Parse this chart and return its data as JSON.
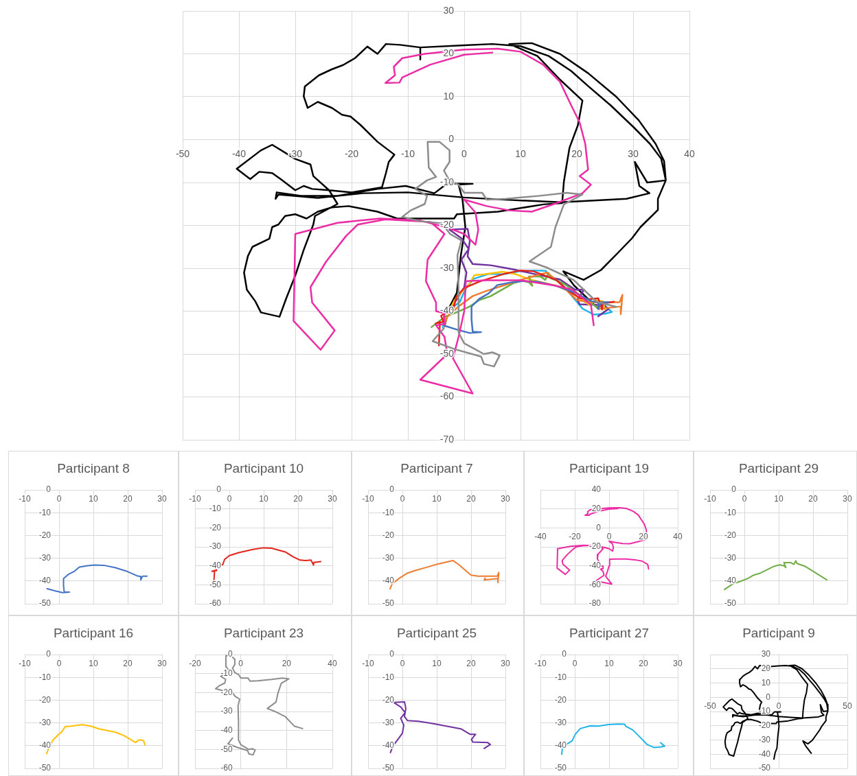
{
  "chart_data": [
    {
      "type": "line",
      "xlim": [
        -50,
        40
      ],
      "ylim": [
        -70,
        30
      ],
      "xticks": [
        -50,
        -40,
        -30,
        -20,
        -10,
        0,
        10,
        20,
        30,
        40
      ],
      "yticks": [
        -70,
        -60,
        -50,
        -40,
        -30,
        -20,
        -10,
        0,
        10,
        20,
        30
      ],
      "grid": true,
      "series": [
        {
          "color": "#8c8c8c",
          "x": [
            -3.6,
            -5.6,
            -1.6,
            3,
            3.5,
            5.3,
            6.3,
            5,
            3.5,
            0,
            -1,
            -1,
            -1.2,
            -0.5,
            -2.5,
            -4,
            -8,
            -11,
            -9.5,
            -7,
            -6.6,
            -8.7,
            -6.6,
            -5,
            -6.3,
            -6.5,
            -4.4,
            -2.6,
            -2.6,
            -3.6,
            -2.7,
            -1,
            0,
            3.2,
            4,
            7.4,
            13.4,
            18.2,
            21,
            17.7,
            16.2,
            15.4,
            11.6,
            14.6,
            19.4,
            23.5,
            27
          ],
          "values": [
            -44,
            -47,
            -48.9,
            -50.6,
            -52.3,
            -52.9,
            -50.3,
            -49.6,
            -50,
            -47.5,
            -45,
            -35,
            -27,
            -23.5,
            -22,
            -19.5,
            -19,
            -18,
            -16.5,
            -15,
            -13.1,
            -11.5,
            -9.5,
            -8.7,
            -6.5,
            -0.5,
            -0.5,
            -2.5,
            -5.2,
            -7.2,
            -9.4,
            -10.5,
            -12.4,
            -12.4,
            -14,
            -13.8,
            -13.1,
            -12.4,
            -12.8,
            -15.1,
            -20.4,
            -25,
            -28.4,
            -29.8,
            -32.7,
            -37.8,
            -39
          ]
        },
        {
          "color": "#ec2ca5",
          "x": [
            5,
            0,
            -6,
            -11,
            -11.5,
            -14,
            -12.3,
            -12.5,
            -11,
            -7,
            0,
            6,
            10,
            14,
            17,
            19,
            20.5,
            21.5,
            22,
            20.5,
            22.5,
            21,
            16,
            12,
            8,
            4,
            0,
            2,
            2.5,
            2,
            0,
            -3,
            -8,
            -15,
            -22.5,
            -30,
            -30.3,
            -25.5,
            -23,
            -27,
            -27.3,
            -24.5,
            -21,
            -18.9,
            -14,
            -6,
            -3.5,
            -6.5,
            -6.8,
            -5,
            -5,
            -3.5,
            -3.5,
            -5,
            -3.5,
            -3,
            -7.8,
            1.5,
            -2,
            -1,
            0,
            0.3,
            4,
            10,
            16,
            19.2,
            22.5,
            23
          ],
          "values": [
            20.3,
            19.8,
            17.5,
            14.5,
            13.3,
            13.2,
            15,
            17,
            19,
            20,
            21,
            21.2,
            20.5,
            17.5,
            13.5,
            8,
            4,
            -1,
            -7,
            -8.5,
            -10.5,
            -12.5,
            -15,
            -16.8,
            -16.5,
            -15.5,
            -14,
            -17,
            -21,
            -24.5,
            -22,
            -20.5,
            -18.8,
            -18.4,
            -19.4,
            -22,
            -42.3,
            -49,
            -44.5,
            -38,
            -34.4,
            -28.4,
            -22.5,
            -19.8,
            -18.6,
            -19.2,
            -22,
            -28,
            -33,
            -38,
            -40,
            -40.5,
            -43,
            -43.3,
            -46,
            -50,
            -56,
            -59.2,
            -51,
            -46,
            -40,
            -33,
            -32.8,
            -32.8,
            -34,
            -35,
            -38.5,
            -43.3
          ]
        },
        {
          "color": "#4472c4",
          "x": [
            -3.5,
            -1.3,
            1,
            3,
            1.5,
            1.3,
            1.3,
            2.7,
            4.3,
            5.9,
            8.3,
            10.3,
            13,
            16.3,
            19.5,
            22.7,
            23.8,
            23.8,
            24.3,
            25.6
          ],
          "values": [
            -43.4,
            -44.3,
            -45.1,
            -44.9,
            -44.8,
            -41.9,
            -38.9,
            -37.1,
            -35.9,
            -33.9,
            -33.3,
            -33,
            -33.1,
            -34.1,
            -35.6,
            -37.7,
            -38,
            -39.5,
            -37.9,
            -37.9
          ]
        },
        {
          "color": "#e3231b",
          "x": [
            -4.5,
            -4.3,
            -5.1,
            -3.7,
            -4.1,
            -2.9,
            -1.9,
            -1.4,
            0,
            2.7,
            7.1,
            10,
            12.3,
            16.3,
            18.6,
            20.6,
            22.2,
            23.8,
            24.5,
            24.6,
            26.6
          ],
          "values": [
            -48,
            -42.5,
            -42.9,
            -42.5,
            -41.1,
            -39.9,
            -39.3,
            -36.7,
            -34.6,
            -33.1,
            -31.3,
            -30.5,
            -30.7,
            -32.7,
            -35.3,
            -37,
            -37.2,
            -37,
            -39.6,
            -38.2,
            -37.8
          ]
        },
        {
          "color": "#ed7d31",
          "x": [
            -3.6,
            -3,
            -1,
            1.5,
            3.9,
            7,
            10,
            14.7,
            16.5,
            18.1,
            20,
            22.1,
            27.6,
            28.1,
            27.8,
            27.8,
            23.8,
            24.1
          ],
          "values": [
            -43.4,
            -41.3,
            -38.9,
            -36.5,
            -35.3,
            -34,
            -32.7,
            -31,
            -32.9,
            -35,
            -37.4,
            -37.9,
            -37.9,
            -36.2,
            -40.7,
            -38.9,
            -39.5,
            -38.7
          ]
        },
        {
          "color": "#70ad47",
          "x": [
            -5.8,
            -3.4,
            -1.4,
            1,
            2.7,
            4.7,
            7.1,
            8.7,
            10.3,
            11.5,
            12.1,
            11.5,
            13.5,
            14.4,
            15,
            15.3,
            17.6,
            20.8,
            24
          ],
          "values": [
            -43.7,
            -41.3,
            -40.3,
            -38.9,
            -37.4,
            -36.5,
            -34.7,
            -33.5,
            -32.9,
            -33.3,
            -34.1,
            -31.9,
            -31.9,
            -32.7,
            -31.1,
            -32.3,
            -33.5,
            -36.5,
            -39.5
          ]
        },
        {
          "color": "#ffc000",
          "x": [
            -3.6,
            -2.9,
            -1.7,
            -0.1,
            0.7,
            1.8,
            3.6,
            6.8,
            9.2,
            11.6,
            16.5,
            18.9,
            22.3,
            23.3,
            24.6,
            25
          ],
          "values": [
            -43.5,
            -40.5,
            -37.4,
            -35,
            -34.1,
            -31.6,
            -31.4,
            -30.8,
            -31.4,
            -32.6,
            -34.1,
            -35.6,
            -38.6,
            -37.4,
            -37.7,
            -39.6
          ]
        },
        {
          "color": "#7030a0",
          "x": [
            -3.5,
            -2.7,
            -1.2,
            0,
            0.4,
            -0.5,
            0.8,
            -0.5,
            -2.6,
            0.6,
            1,
            0.6,
            1.5,
            4.7,
            8.5,
            13,
            17,
            19.7,
            21.3,
            20.1,
            20.5,
            24.8,
            25.6,
            23.8
          ],
          "values": [
            -43,
            -40,
            -37,
            -34.5,
            -31,
            -28,
            -25.5,
            -23,
            -21,
            -20.8,
            -23.6,
            -27.2,
            -29,
            -29.3,
            -30.2,
            -31.5,
            -32.6,
            -35,
            -35,
            -37.3,
            -38.4,
            -38.6,
            -39.5,
            -41.2
          ]
        },
        {
          "color": "#1fb4e8",
          "x": [
            -3.8,
            -3.6,
            -2.4,
            -0.8,
            0.2,
            1.6,
            4.4,
            6.9,
            9.9,
            12.5,
            14.5,
            14.9,
            16.9,
            18.9,
            21,
            23,
            25,
            26.2,
            25
          ],
          "values": [
            -43.8,
            -40.8,
            -39.4,
            -37.9,
            -34.9,
            -32.5,
            -31.3,
            -31.4,
            -30.7,
            -30.5,
            -30.6,
            -31.5,
            -33.1,
            -36.1,
            -39.4,
            -40.8,
            -40.6,
            -40.2,
            -38.7
          ]
        },
        {
          "color": "#000000",
          "x": [
            -3.5,
            -2.6,
            -1.3,
            -0.6,
            0.2,
            -0.3,
            -1,
            1.5,
            -3,
            -5.3,
            -10.4,
            -15.4,
            -22.5,
            -29,
            -33.3,
            -33.5,
            -33,
            -26,
            -18,
            -10,
            0,
            8.6,
            17.2,
            28.8,
            32.9,
            31.1,
            30.3,
            32.5,
            35.8,
            35,
            33,
            30,
            26,
            22,
            19,
            15,
            10,
            5,
            0,
            -7.8,
            -7.8,
            -7.8,
            -11.4,
            -13.9,
            -15.4,
            -17.2,
            -19.4,
            -21.5,
            -23.5,
            -25.8,
            -28.3,
            -28.5,
            -27.8,
            -26,
            -23.5,
            -21.7,
            -20.2,
            -18.4,
            -15.4,
            -12.4,
            -13.4,
            -13.9,
            -14.6,
            -20,
            -24,
            -27,
            -28.5,
            -30,
            -32.6,
            -34.1,
            -36.4,
            -38,
            -40.4,
            -36.1,
            -34.1,
            -30,
            -27.3,
            -26.8,
            -24,
            -22.5,
            -26.5,
            -26.8,
            -28.5,
            -30,
            -31.6,
            -32.8,
            -36.1,
            -37.1,
            -38.6,
            -39.1,
            -38.4,
            -37.6,
            -34.6,
            -34.1,
            -33,
            -31.8,
            -30,
            -28,
            -26,
            -23.5,
            -20.5,
            -15.4,
            -11.9,
            -1.8,
            -1.3,
            6,
            14.1,
            17.4,
            17.7,
            18.2,
            18.7,
            20.2,
            21,
            17,
            13,
            8,
            12,
            17,
            22,
            27,
            31,
            34,
            35.5,
            35.8,
            34.4,
            34.4,
            31.3,
            29.8,
            27.3,
            24.3,
            21.2,
            17.6,
            19.5,
            23.7
          ],
          "values": [
            -43.5,
            -39,
            -35.7,
            -27,
            -20.4,
            -14,
            -10.5,
            -10.3,
            -10.2,
            -12.5,
            -10.8,
            -11.5,
            -13.1,
            -13.1,
            -12.3,
            -13.8,
            -12.8,
            -13.6,
            -12.5,
            -12.3,
            -13.5,
            -14.1,
            -14.6,
            -13.8,
            -12.5,
            -10.8,
            -5.2,
            -10,
            -9.5,
            -4.5,
            -1,
            3,
            8,
            12.5,
            16,
            19.5,
            21.8,
            22.3,
            22,
            21.5,
            18.7,
            21.5,
            22.1,
            22.3,
            20,
            21.7,
            19,
            17.4,
            16.4,
            15,
            12.4,
            10.1,
            7.4,
            8.8,
            7.4,
            5.8,
            5.4,
            3.4,
            -0.5,
            -3.5,
            -5.2,
            -7.8,
            -11.1,
            -12.3,
            -11.8,
            -11.5,
            -10.8,
            -11.8,
            -9.2,
            -7.8,
            -7.5,
            -9.2,
            -6.8,
            -2.5,
            -1.2,
            -4.5,
            -5.8,
            -8.5,
            -11.8,
            -15,
            -17.8,
            -19.8,
            -25.7,
            -31.7,
            -37,
            -41.3,
            -40.3,
            -37.7,
            -35,
            -31,
            -27.1,
            -25,
            -23.1,
            -20.4,
            -19.8,
            -17.8,
            -17.4,
            -18.4,
            -16.8,
            -15.8,
            -15.5,
            -16.8,
            -18.4,
            -18.4,
            -17.4,
            -16.8,
            -15.1,
            -14.8,
            -9.8,
            -5.8,
            -1.9,
            3.4,
            9.1,
            14,
            19.5,
            22.3,
            22.5,
            20,
            15.5,
            10,
            4.5,
            -1,
            -5,
            -9.5,
            -13.8,
            -16.4,
            -20.4,
            -23,
            -26.4,
            -30.4,
            -32.7,
            -30.7,
            -34,
            -39.3
          ]
        }
      ]
    },
    {
      "type": "line",
      "title": "Participant 8",
      "xlim": [
        -10,
        30
      ],
      "ylim": [
        -50,
        0
      ],
      "xticks": [
        -10,
        0,
        10,
        20,
        30
      ],
      "yticks": [
        -50,
        -40,
        -30,
        -20,
        -10,
        0
      ],
      "grid": true,
      "series": [
        {
          "color": "#4472c4",
          "x": [
            -3.5,
            -1.3,
            1,
            3,
            1.5,
            1.3,
            1.3,
            2.7,
            4.3,
            5.9,
            8.3,
            10.3,
            13,
            16.3,
            19.5,
            22.7,
            23.8,
            23.8,
            24.3,
            25.6
          ],
          "values": [
            -43.4,
            -44.3,
            -45.1,
            -44.9,
            -44.8,
            -41.9,
            -38.9,
            -37.1,
            -35.9,
            -33.9,
            -33.3,
            -33,
            -33.1,
            -34.1,
            -35.6,
            -37.7,
            -38,
            -39.5,
            -37.9,
            -37.9
          ]
        }
      ]
    },
    {
      "type": "line",
      "title": "Participant 10",
      "xlim": [
        -10,
        30
      ],
      "ylim": [
        -60,
        0
      ],
      "xticks": [
        -10,
        0,
        10,
        20,
        30
      ],
      "yticks": [
        -60,
        -50,
        -40,
        -30,
        -20,
        -10,
        0
      ],
      "grid": true,
      "series": [
        {
          "color": "#e3231b",
          "x": [
            -4.5,
            -4.3,
            -5.1,
            -3.7,
            -4.1,
            -2.9,
            -1.9,
            -1.4,
            0,
            2.7,
            7.1,
            10,
            12.3,
            16.3,
            18.6,
            20.6,
            22.2,
            23.8,
            24.5,
            24.6,
            26.6
          ],
          "values": [
            -48,
            -42.5,
            -42.9,
            -42.5,
            -41.1,
            -39.9,
            -39.3,
            -36.7,
            -34.6,
            -33.1,
            -31.3,
            -30.5,
            -30.7,
            -32.7,
            -35.3,
            -37,
            -37.2,
            -37,
            -39.6,
            -38.2,
            -37.8
          ]
        }
      ]
    },
    {
      "type": "line",
      "title": "Participant 7",
      "xlim": [
        -10,
        30
      ],
      "ylim": [
        -50,
        0
      ],
      "xticks": [
        -10,
        0,
        10,
        20,
        30
      ],
      "yticks": [
        -50,
        -40,
        -30,
        -20,
        -10,
        0
      ],
      "grid": true,
      "series": [
        {
          "color": "#ed7d31",
          "x": [
            -3.6,
            -3,
            -1,
            1.5,
            3.9,
            7,
            10,
            14.7,
            16.5,
            18.1,
            20,
            22.1,
            27.6,
            28.1,
            27.8,
            27.8,
            23.8,
            24.1
          ],
          "values": [
            -43.4,
            -41.3,
            -38.9,
            -36.5,
            -35.3,
            -34,
            -32.7,
            -31,
            -32.9,
            -35,
            -37.4,
            -37.9,
            -37.9,
            -36.2,
            -40.7,
            -38.9,
            -39.5,
            -38.7
          ]
        }
      ]
    },
    {
      "type": "line",
      "title": "Participant 19",
      "xlim": [
        -40,
        40
      ],
      "ylim": [
        -80,
        40
      ],
      "xticks": [
        -40,
        -20,
        0,
        20,
        40
      ],
      "yticks": [
        -80,
        -60,
        -40,
        -20,
        0,
        20,
        40
      ],
      "grid": true,
      "series": [
        {
          "color": "#ec2ca5",
          "x": [
            5,
            0,
            -6,
            -11,
            -11.5,
            -14,
            -12.3,
            -12.5,
            -11,
            -7,
            0,
            6,
            10,
            14,
            17,
            19,
            20.5,
            21.5,
            22,
            20.5,
            22.5,
            21,
            16,
            12,
            8,
            4,
            0,
            2,
            2.5,
            2,
            0,
            -3,
            -8,
            -15,
            -22.5,
            -30,
            -30.3,
            -25.5,
            -23,
            -27,
            -27.3,
            -24.5,
            -21,
            -18.9,
            -14,
            -6,
            -3.5,
            -6.5,
            -6.8,
            -5,
            -5,
            -3.5,
            -3.5,
            -5,
            -3.5,
            -3,
            -7.8,
            1.5,
            -2,
            -1,
            0,
            0.3,
            4,
            10,
            16,
            19.2,
            22.5,
            23
          ],
          "values": [
            20.3,
            19.8,
            17.5,
            14.5,
            13.3,
            13.2,
            15,
            17,
            19,
            20,
            21,
            21.2,
            20.5,
            17.5,
            13.5,
            8,
            4,
            -1,
            -7,
            -8.5,
            -10.5,
            -12.5,
            -15,
            -16.8,
            -16.5,
            -15.5,
            -14,
            -17,
            -21,
            -24.5,
            -22,
            -20.5,
            -18.8,
            -18.4,
            -19.4,
            -22,
            -42.3,
            -49,
            -44.5,
            -38,
            -34.4,
            -28.4,
            -22.5,
            -19.8,
            -18.6,
            -19.2,
            -22,
            -28,
            -33,
            -38,
            -40,
            -40.5,
            -43,
            -43.3,
            -46,
            -50,
            -56,
            -59.2,
            -51,
            -46,
            -40,
            -33,
            -32.8,
            -32.8,
            -34,
            -35,
            -38.5,
            -43.3
          ]
        }
      ]
    },
    {
      "type": "line",
      "title": "Participant 29",
      "xlim": [
        -10,
        30
      ],
      "ylim": [
        -50,
        0
      ],
      "xticks": [
        -10,
        0,
        10,
        20,
        30
      ],
      "yticks": [
        -50,
        -40,
        -30,
        -20,
        -10,
        0
      ],
      "grid": true,
      "series": [
        {
          "color": "#70ad47",
          "x": [
            -5.8,
            -3.4,
            -1.4,
            1,
            2.7,
            4.7,
            7.1,
            8.7,
            10.3,
            11.5,
            12.1,
            11.5,
            13.5,
            14.4,
            15,
            15.3,
            17.6,
            20.8,
            24
          ],
          "values": [
            -43.7,
            -41.3,
            -40.3,
            -38.9,
            -37.4,
            -36.5,
            -34.7,
            -33.5,
            -32.9,
            -33.3,
            -34.1,
            -31.9,
            -31.9,
            -32.7,
            -31.1,
            -32.3,
            -33.5,
            -36.5,
            -39.5
          ]
        }
      ]
    },
    {
      "type": "line",
      "title": "Participant 16",
      "xlim": [
        -10,
        30
      ],
      "ylim": [
        -50,
        0
      ],
      "xticks": [
        -10,
        0,
        10,
        20,
        30
      ],
      "yticks": [
        -50,
        -40,
        -30,
        -20,
        -10,
        0
      ],
      "grid": true,
      "series": [
        {
          "color": "#ffc000",
          "x": [
            -3.6,
            -2.9,
            -1.7,
            -0.1,
            0.7,
            1.8,
            3.6,
            6.8,
            9.2,
            11.6,
            16.5,
            18.9,
            22.3,
            23.3,
            24.6,
            25
          ],
          "values": [
            -43.5,
            -40.5,
            -37.4,
            -35,
            -34.1,
            -31.6,
            -31.4,
            -30.8,
            -31.4,
            -32.6,
            -34.1,
            -35.6,
            -38.6,
            -37.4,
            -37.7,
            -39.6
          ]
        }
      ]
    },
    {
      "type": "line",
      "title": "Participant 23",
      "xlim": [
        -20,
        40
      ],
      "ylim": [
        -60,
        0
      ],
      "xticks": [
        -20,
        0,
        20,
        40
      ],
      "yticks": [
        -60,
        -50,
        -40,
        -30,
        -20,
        -10,
        0
      ],
      "grid": true,
      "series": [
        {
          "color": "#8c8c8c",
          "x": [
            -3.6,
            -5.6,
            -1.6,
            3,
            3.5,
            5.3,
            6.3,
            5,
            3.5,
            0,
            -1,
            -1,
            -1.2,
            -0.5,
            -2.5,
            -4,
            -8,
            -11,
            -9.5,
            -7,
            -6.6,
            -8.7,
            -6.6,
            -5,
            -6.3,
            -6.5,
            -4.4,
            -2.6,
            -2.6,
            -3.6,
            -2.7,
            -1,
            0,
            3.2,
            4,
            7.4,
            13.4,
            18.2,
            21,
            17.7,
            16.2,
            15.4,
            11.6,
            14.6,
            19.4,
            23.5,
            27
          ],
          "values": [
            -44,
            -47,
            -48.9,
            -50.6,
            -52.3,
            -52.9,
            -50.3,
            -49.6,
            -50,
            -47.5,
            -45,
            -35,
            -27,
            -23.5,
            -22,
            -19.5,
            -19,
            -18,
            -16.5,
            -15,
            -13.1,
            -11.5,
            -9.5,
            -8.7,
            -6.5,
            -0.5,
            -0.5,
            -2.5,
            -5.2,
            -7.2,
            -9.4,
            -10.5,
            -12.4,
            -12.4,
            -14,
            -13.8,
            -13.1,
            -12.4,
            -12.8,
            -15.1,
            -20.4,
            -25,
            -28.4,
            -29.8,
            -32.7,
            -37.8,
            -39
          ]
        }
      ]
    },
    {
      "type": "line",
      "title": "Participant 25",
      "xlim": [
        -10,
        30
      ],
      "ylim": [
        -50,
        0
      ],
      "xticks": [
        -10,
        0,
        10,
        20,
        30
      ],
      "yticks": [
        -50,
        -40,
        -30,
        -20,
        -10,
        0
      ],
      "grid": true,
      "series": [
        {
          "color": "#7030a0",
          "x": [
            -3.5,
            -2.7,
            -1.2,
            0,
            0.4,
            -0.5,
            0.8,
            -0.5,
            -2.6,
            0.6,
            1,
            0.6,
            1.5,
            4.7,
            8.5,
            13,
            17,
            19.7,
            21.3,
            20.1,
            20.5,
            24.8,
            25.6,
            23.8
          ],
          "values": [
            -43,
            -40,
            -37,
            -34.5,
            -31,
            -28,
            -25.5,
            -23,
            -21,
            -20.8,
            -23.6,
            -27.2,
            -29,
            -29.3,
            -30.2,
            -31.5,
            -32.6,
            -35,
            -35,
            -37.3,
            -38.4,
            -38.6,
            -39.5,
            -41.2
          ]
        }
      ]
    },
    {
      "type": "line",
      "title": "Participant 27",
      "xlim": [
        -10,
        30
      ],
      "ylim": [
        -50,
        0
      ],
      "xticks": [
        -10,
        0,
        10,
        20,
        30
      ],
      "yticks": [
        -50,
        -40,
        -30,
        -20,
        -10,
        0
      ],
      "grid": true,
      "series": [
        {
          "color": "#1fb4e8",
          "x": [
            -3.8,
            -3.6,
            -2.4,
            -0.8,
            0.2,
            1.6,
            4.4,
            6.9,
            9.9,
            12.5,
            14.5,
            14.9,
            16.9,
            18.9,
            21,
            23,
            25,
            26.2,
            25
          ],
          "values": [
            -43.8,
            -40.8,
            -39.4,
            -37.9,
            -34.9,
            -32.5,
            -31.3,
            -31.4,
            -30.7,
            -30.5,
            -30.6,
            -31.5,
            -33.1,
            -36.1,
            -39.4,
            -40.8,
            -40.6,
            -40.2,
            -38.7
          ]
        }
      ]
    },
    {
      "type": "line",
      "title": "Participant 9",
      "xlim": [
        -50,
        50
      ],
      "ylim": [
        -50,
        30
      ],
      "xticks": [
        -50,
        0,
        50
      ],
      "yticks": [
        -50,
        -40,
        -30,
        -20,
        -10,
        0,
        10,
        20,
        30
      ],
      "grid": true,
      "series": [
        {
          "color": "#000000",
          "x": [
            -3.5,
            -2.6,
            -1.3,
            -0.6,
            0.2,
            -0.3,
            -1,
            1.5,
            -3,
            -5.3,
            -10.4,
            -15.4,
            -22.5,
            -29,
            -33.3,
            -33.5,
            -33,
            -26,
            -18,
            -10,
            0,
            8.6,
            17.2,
            28.8,
            32.9,
            31.1,
            30.3,
            32.5,
            35.8,
            35,
            33,
            30,
            26,
            22,
            19,
            15,
            10,
            5,
            0,
            -7.8,
            -7.8,
            -7.8,
            -11.4,
            -13.9,
            -15.4,
            -17.2,
            -19.4,
            -21.5,
            -23.5,
            -25.8,
            -28.3,
            -28.5,
            -27.8,
            -26,
            -23.5,
            -21.7,
            -20.2,
            -18.4,
            -15.4,
            -12.4,
            -13.4,
            -13.9,
            -14.6,
            -20,
            -24,
            -27,
            -28.5,
            -30,
            -32.6,
            -34.1,
            -36.4,
            -38,
            -40.4,
            -36.1,
            -34.1,
            -30,
            -27.3,
            -26.8,
            -24,
            -22.5,
            -26.5,
            -26.8,
            -28.5,
            -30,
            -31.6,
            -32.8,
            -36.1,
            -37.1,
            -38.6,
            -39.1,
            -38.4,
            -37.6,
            -34.6,
            -34.1,
            -33,
            -31.8,
            -30,
            -28,
            -26,
            -23.5,
            -20.5,
            -15.4,
            -11.9,
            -1.8,
            -1.3,
            6,
            14.1,
            17.4,
            17.7,
            18.2,
            18.7,
            20.2,
            21,
            17,
            13,
            8,
            12,
            17,
            22,
            27,
            31,
            34,
            35.5,
            35.8,
            34.4,
            34.4,
            31.3,
            29.8,
            27.3,
            24.3,
            21.2,
            17.6,
            19.5,
            23.7
          ],
          "values": [
            -43.5,
            -39,
            -35.7,
            -27,
            -20.4,
            -14,
            -10.5,
            -10.3,
            -10.2,
            -12.5,
            -10.8,
            -11.5,
            -13.1,
            -13.1,
            -12.3,
            -13.8,
            -12.8,
            -13.6,
            -12.5,
            -12.3,
            -13.5,
            -14.1,
            -14.6,
            -13.8,
            -12.5,
            -10.8,
            -5.2,
            -10,
            -9.5,
            -4.5,
            -1,
            3,
            8,
            12.5,
            16,
            19.5,
            21.8,
            22.3,
            22,
            21.5,
            18.7,
            21.5,
            22.1,
            22.3,
            20,
            21.7,
            19,
            17.4,
            16.4,
            15,
            12.4,
            10.1,
            7.4,
            8.8,
            7.4,
            5.8,
            5.4,
            3.4,
            -0.5,
            -3.5,
            -5.2,
            -7.8,
            -11.1,
            -12.3,
            -11.8,
            -11.5,
            -10.8,
            -11.8,
            -9.2,
            -7.8,
            -7.5,
            -9.2,
            -6.8,
            -2.5,
            -1.2,
            -4.5,
            -5.8,
            -8.5,
            -11.8,
            -15,
            -17.8,
            -19.8,
            -25.7,
            -31.7,
            -37,
            -41.3,
            -40.3,
            -37.7,
            -35,
            -31,
            -27.1,
            -25,
            -23.1,
            -20.4,
            -19.8,
            -17.8,
            -17.4,
            -18.4,
            -16.8,
            -15.8,
            -15.5,
            -16.8,
            -18.4,
            -18.4,
            -17.4,
            -16.8,
            -15.1,
            -14.8,
            -9.8,
            -5.8,
            -1.9,
            3.4,
            9.1,
            14,
            19.5,
            22.3,
            22.5,
            20,
            15.5,
            10,
            4.5,
            -1,
            -5,
            -9.5,
            -13.8,
            -16.4,
            -20.4,
            -23,
            -26.4,
            -30.4,
            -32.7,
            -30.7,
            -34,
            -39.3
          ]
        }
      ]
    }
  ]
}
